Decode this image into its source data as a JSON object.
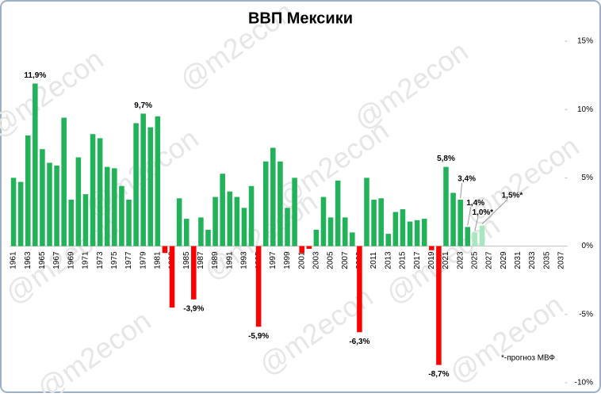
{
  "chart_data": {
    "type": "bar",
    "title": "ВВП Мексики",
    "watermark": "@m2econ",
    "note": "*-прогноз МВФ",
    "categories": [
      1961,
      null,
      1963,
      null,
      1965,
      null,
      1967,
      null,
      1969,
      null,
      1971,
      null,
      1973,
      null,
      1975,
      null,
      1977,
      null,
      1979,
      null,
      1981,
      null,
      1983,
      null,
      1985,
      null,
      1987,
      null,
      1989,
      null,
      1991,
      null,
      1993,
      null,
      1995,
      null,
      1997,
      null,
      1999,
      null,
      2001,
      null,
      2003,
      null,
      2005,
      null,
      2007,
      null,
      2009,
      null,
      2011,
      null,
      2013,
      null,
      2015,
      null,
      2017,
      null,
      2019,
      null,
      2021,
      null,
      2023,
      null,
      2025,
      null,
      2027,
      null,
      2029,
      null,
      2031,
      null,
      2033,
      null,
      2035,
      null,
      2037
    ],
    "values": [
      5.0,
      4.7,
      8.1,
      11.9,
      7.1,
      6.1,
      5.9,
      9.4,
      3.4,
      6.5,
      3.8,
      8.2,
      7.9,
      5.8,
      5.7,
      4.4,
      3.4,
      9.0,
      9.7,
      8.7,
      9.5,
      -0.5,
      -4.5,
      3.5,
      2.0,
      -3.9,
      2.1,
      1.2,
      3.6,
      5.3,
      4.0,
      3.6,
      2.8,
      4.4,
      -5.9,
      6.2,
      7.2,
      6.2,
      2.8,
      5.0,
      -0.5,
      -0.2,
      1.2,
      3.6,
      2.1,
      4.8,
      2.1,
      1.0,
      -6.3,
      5.0,
      3.4,
      3.5,
      0.9,
      2.5,
      2.7,
      1.8,
      1.9,
      2.0,
      -0.3,
      -8.7,
      5.8,
      3.9,
      3.4,
      1.4,
      1.0,
      1.5,
      null,
      null,
      null,
      null,
      null,
      null,
      null,
      null,
      null,
      null,
      null
    ],
    "value_labels": [
      null,
      null,
      null,
      "11,9%",
      null,
      null,
      null,
      null,
      null,
      null,
      null,
      null,
      null,
      null,
      null,
      null,
      null,
      null,
      "9,7%",
      null,
      null,
      null,
      null,
      null,
      null,
      "-3,9%",
      null,
      null,
      null,
      null,
      null,
      null,
      null,
      null,
      "-5,9%",
      null,
      null,
      null,
      null,
      null,
      null,
      null,
      null,
      null,
      null,
      null,
      null,
      null,
      "-6,3%",
      null,
      null,
      null,
      null,
      null,
      null,
      null,
      null,
      null,
      null,
      "-8,7%",
      "5,8%",
      null,
      "3,4%",
      "1,4%",
      "1,0%*",
      "1,5%*",
      null,
      null,
      null,
      null,
      null,
      null,
      null,
      null,
      null,
      null,
      null
    ],
    "colors": [
      "#22b35a",
      "#22b35a",
      "#22b35a",
      "#22b35a",
      "#22b35a",
      "#22b35a",
      "#22b35a",
      "#22b35a",
      "#22b35a",
      "#22b35a",
      "#22b35a",
      "#22b35a",
      "#22b35a",
      "#22b35a",
      "#22b35a",
      "#22b35a",
      "#22b35a",
      "#22b35a",
      "#22b35a",
      "#22b35a",
      "#22b35a",
      "#ff0000",
      "#ff0000",
      "#22b35a",
      "#22b35a",
      "#ff0000",
      "#22b35a",
      "#22b35a",
      "#22b35a",
      "#22b35a",
      "#22b35a",
      "#22b35a",
      "#22b35a",
      "#22b35a",
      "#ff0000",
      "#22b35a",
      "#22b35a",
      "#22b35a",
      "#22b35a",
      "#22b35a",
      "#ff0000",
      "#ff0000",
      "#22b35a",
      "#22b35a",
      "#22b35a",
      "#22b35a",
      "#22b35a",
      "#22b35a",
      "#ff0000",
      "#22b35a",
      "#22b35a",
      "#22b35a",
      "#22b35a",
      "#22b35a",
      "#22b35a",
      "#22b35a",
      "#22b35a",
      "#22b35a",
      "#ff0000",
      "#ff0000",
      "#22b35a",
      "#22b35a",
      "#22b35a",
      "#22b35a",
      "#a8e6bf",
      "#a8e6bf",
      null,
      null,
      null,
      null,
      null,
      null,
      null,
      null,
      null,
      null,
      null
    ],
    "ylim": [
      -10,
      15
    ],
    "yticks": [
      {
        "value": -10,
        "label": "-10%"
      },
      {
        "value": -5,
        "label": "-5%"
      },
      {
        "value": 0,
        "label": "0%"
      },
      {
        "value": 5,
        "label": "5%"
      },
      {
        "value": 10,
        "label": "10%"
      },
      {
        "value": 15,
        "label": "15%"
      }
    ],
    "grid": false
  }
}
